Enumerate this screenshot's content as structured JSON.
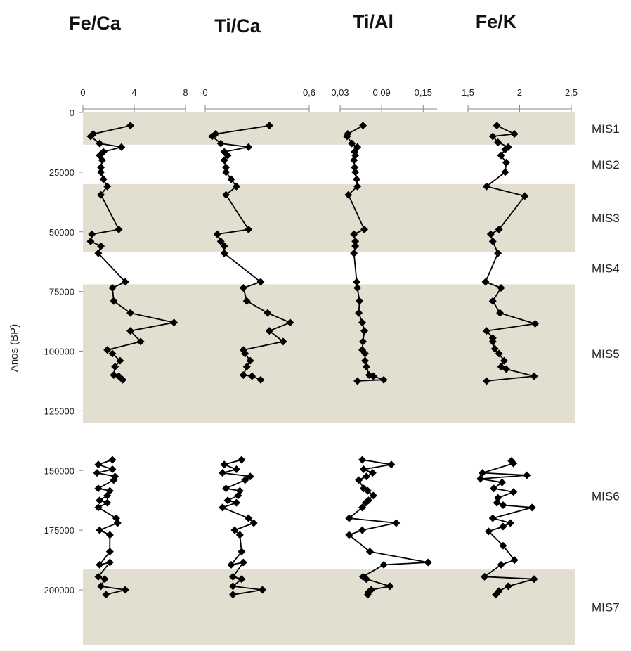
{
  "chart_data": {
    "type": "line",
    "ylabel": "Anos (BP)",
    "y_axis": {
      "ylim": [
        0,
        225000
      ],
      "ticks": [
        0,
        25000,
        50000,
        75000,
        100000,
        125000,
        150000,
        175000,
        200000
      ],
      "tick_labels": [
        "0",
        "25000",
        "50000",
        "75000",
        "100000",
        "125000",
        "150000",
        "175000",
        "200000"
      ],
      "reversed": true
    },
    "shading_color": "#e2dfd0",
    "marine_isotope_stages": [
      {
        "label": "MIS1",
        "from": 0,
        "to": 13500,
        "shaded": true
      },
      {
        "label": "MIS2",
        "from": 13500,
        "to": 30000,
        "shaded": false
      },
      {
        "label": "MIS3",
        "from": 30000,
        "to": 58500,
        "shaded": true
      },
      {
        "label": "MIS4",
        "from": 58500,
        "to": 72000,
        "shaded": false
      },
      {
        "label": "MIS5",
        "from": 72000,
        "to": 130000,
        "shaded": true
      },
      {
        "label": "MIS6",
        "from": 130000,
        "to": 191500,
        "shaded": false
      },
      {
        "label": "MIS7",
        "from": 191500,
        "to": 223000,
        "shaded": true
      }
    ],
    "panels": [
      {
        "title": "Fe/Ca",
        "xlim": [
          0,
          8
        ],
        "x_ticks": [
          0,
          4,
          8
        ],
        "x_tick_labels": [
          "0",
          "4",
          "8"
        ],
        "segments": [
          [
            [
              3.7,
              5500
            ],
            [
              0.8,
              9000
            ],
            [
              0.6,
              10000
            ],
            [
              1.3,
              13000
            ],
            [
              3.0,
              14500
            ],
            [
              1.6,
              16500
            ],
            [
              1.3,
              18000
            ],
            [
              1.5,
              20000
            ],
            [
              1.4,
              23000
            ],
            [
              1.4,
              25000
            ],
            [
              1.6,
              28000
            ],
            [
              1.9,
              31000
            ],
            [
              1.4,
              34500
            ],
            [
              2.8,
              49000
            ],
            [
              0.7,
              51000
            ],
            [
              0.6,
              54000
            ],
            [
              1.4,
              56000
            ],
            [
              1.2,
              59000
            ],
            [
              3.3,
              71000
            ],
            [
              2.3,
              73500
            ],
            [
              2.4,
              79000
            ],
            [
              3.7,
              84000
            ],
            [
              7.1,
              88000
            ],
            [
              3.7,
              91500
            ],
            [
              4.5,
              96000
            ],
            [
              1.9,
              99500
            ],
            [
              2.3,
              101000
            ],
            [
              2.9,
              104000
            ],
            [
              2.5,
              106500
            ],
            [
              2.4,
              110000
            ],
            [
              2.8,
              110500
            ],
            [
              3.1,
              112000
            ]
          ],
          [
            [
              2.3,
              145500
            ],
            [
              1.2,
              147500
            ],
            [
              2.3,
              149500
            ],
            [
              1.1,
              151000
            ],
            [
              2.5,
              152500
            ],
            [
              2.4,
              154000
            ],
            [
              1.2,
              157500
            ],
            [
              2.1,
              158500
            ],
            [
              1.9,
              160500
            ],
            [
              1.3,
              162500
            ],
            [
              1.9,
              163500
            ],
            [
              1.2,
              165500
            ],
            [
              2.6,
              170000
            ],
            [
              2.7,
              172000
            ],
            [
              1.3,
              175000
            ],
            [
              2.1,
              177000
            ],
            [
              2.1,
              184000
            ],
            [
              1.3,
              189500
            ],
            [
              2.1,
              188500
            ],
            [
              1.2,
              194500
            ],
            [
              1.7,
              195500
            ],
            [
              1.4,
              198500
            ],
            [
              3.3,
              200000
            ],
            [
              1.8,
              202000
            ]
          ]
        ]
      },
      {
        "title": "Ti/Ca",
        "xlim": [
          0,
          0.6
        ],
        "x_ticks": [
          0,
          0.6
        ],
        "x_tick_labels": [
          "0",
          "0,6"
        ],
        "segments": [
          [
            [
              0.37,
              5500
            ],
            [
              0.06,
              9000
            ],
            [
              0.04,
              10000
            ],
            [
              0.09,
              13000
            ],
            [
              0.25,
              14500
            ],
            [
              0.11,
              16500
            ],
            [
              0.13,
              18000
            ],
            [
              0.11,
              20000
            ],
            [
              0.12,
              23000
            ],
            [
              0.12,
              25000
            ],
            [
              0.15,
              28000
            ],
            [
              0.18,
              31000
            ],
            [
              0.12,
              34500
            ],
            [
              0.25,
              49000
            ],
            [
              0.07,
              51000
            ],
            [
              0.09,
              54000
            ],
            [
              0.11,
              56000
            ],
            [
              0.11,
              59000
            ],
            [
              0.32,
              71000
            ],
            [
              0.22,
              73500
            ],
            [
              0.24,
              79000
            ],
            [
              0.36,
              84000
            ],
            [
              0.49,
              88000
            ],
            [
              0.37,
              91500
            ],
            [
              0.45,
              96000
            ],
            [
              0.22,
              99500
            ],
            [
              0.23,
              101000
            ],
            [
              0.26,
              104000
            ],
            [
              0.24,
              106500
            ],
            [
              0.22,
              110000
            ],
            [
              0.27,
              110500
            ],
            [
              0.32,
              112000
            ]
          ],
          [
            [
              0.21,
              145500
            ],
            [
              0.11,
              147500
            ],
            [
              0.18,
              149500
            ],
            [
              0.1,
              151000
            ],
            [
              0.26,
              152500
            ],
            [
              0.23,
              154000
            ],
            [
              0.12,
              157500
            ],
            [
              0.2,
              158500
            ],
            [
              0.19,
              160500
            ],
            [
              0.13,
              162500
            ],
            [
              0.18,
              163500
            ],
            [
              0.1,
              165500
            ],
            [
              0.25,
              170000
            ],
            [
              0.28,
              172000
            ],
            [
              0.17,
              175000
            ],
            [
              0.2,
              177000
            ],
            [
              0.21,
              184000
            ],
            [
              0.15,
              189500
            ],
            [
              0.22,
              188500
            ],
            [
              0.16,
              194500
            ],
            [
              0.21,
              195500
            ],
            [
              0.16,
              198500
            ],
            [
              0.33,
              200000
            ],
            [
              0.16,
              202000
            ]
          ]
        ]
      },
      {
        "title": "Ti/Al",
        "xlim": [
          0.03,
          0.17
        ],
        "x_ticks": [
          0.03,
          0.09,
          0.15
        ],
        "x_tick_labels": [
          "0,03",
          "0,09",
          "0,15"
        ],
        "segments": [
          [
            [
              0.063,
              5500
            ],
            [
              0.041,
              9000
            ],
            [
              0.04,
              10000
            ],
            [
              0.047,
              13000
            ],
            [
              0.055,
              14500
            ],
            [
              0.051,
              16500
            ],
            [
              0.052,
              18000
            ],
            [
              0.05,
              20000
            ],
            [
              0.051,
              23000
            ],
            [
              0.052,
              25000
            ],
            [
              0.054,
              28000
            ],
            [
              0.055,
              31000
            ],
            [
              0.042,
              34500
            ],
            [
              0.065,
              49000
            ],
            [
              0.05,
              51000
            ],
            [
              0.052,
              54000
            ],
            [
              0.052,
              56000
            ],
            [
              0.05,
              59000
            ],
            [
              0.054,
              71000
            ],
            [
              0.055,
              73500
            ],
            [
              0.058,
              79000
            ],
            [
              0.057,
              84000
            ],
            [
              0.062,
              88000
            ],
            [
              0.065,
              91500
            ],
            [
              0.063,
              96000
            ],
            [
              0.062,
              99500
            ],
            [
              0.066,
              101000
            ],
            [
              0.066,
              104000
            ],
            [
              0.068,
              106500
            ],
            [
              0.072,
              110000
            ],
            [
              0.078,
              110500
            ],
            [
              0.093,
              112000
            ],
            [
              0.055,
              112500
            ]
          ],
          [
            [
              0.062,
              145500
            ],
            [
              0.104,
              147500
            ],
            [
              0.064,
              149500
            ],
            [
              0.077,
              151000
            ],
            [
              0.068,
              152500
            ],
            [
              0.057,
              154000
            ],
            [
              0.064,
              157500
            ],
            [
              0.07,
              158500
            ],
            [
              0.078,
              160500
            ],
            [
              0.071,
              162500
            ],
            [
              0.067,
              163500
            ],
            [
              0.062,
              165500
            ],
            [
              0.043,
              170000
            ],
            [
              0.111,
              172000
            ],
            [
              0.062,
              175000
            ],
            [
              0.043,
              177000
            ],
            [
              0.073,
              184000
            ],
            [
              0.157,
              188500
            ],
            [
              0.093,
              189500
            ],
            [
              0.063,
              194500
            ],
            [
              0.068,
              195500
            ],
            [
              0.102,
              198500
            ],
            [
              0.075,
              200000
            ],
            [
              0.071,
              201000
            ],
            [
              0.07,
              202000
            ]
          ]
        ]
      },
      {
        "title": "Fe/K",
        "xlim": [
          1.5,
          2.5
        ],
        "x_ticks": [
          1.5,
          2,
          2.5
        ],
        "x_tick_labels": [
          "1,5",
          "2",
          "2,5"
        ],
        "segments": [
          [
            [
              1.78,
              5500
            ],
            [
              1.95,
              9000
            ],
            [
              1.74,
              10000
            ],
            [
              1.79,
              12500
            ],
            [
              1.89,
              14500
            ],
            [
              1.86,
              15500
            ],
            [
              1.82,
              18000
            ],
            [
              1.87,
              21000
            ],
            [
              1.86,
              25000
            ],
            [
              1.68,
              31000
            ],
            [
              2.05,
              35000
            ],
            [
              1.8,
              49000
            ],
            [
              1.72,
              51000
            ],
            [
              1.74,
              54000
            ],
            [
              1.79,
              59000
            ],
            [
              1.67,
              71000
            ],
            [
              1.82,
              73500
            ],
            [
              1.74,
              79000
            ],
            [
              1.81,
              84000
            ],
            [
              2.15,
              88500
            ],
            [
              1.68,
              91500
            ],
            [
              1.74,
              94500
            ],
            [
              1.74,
              96000
            ],
            [
              1.76,
              99000
            ],
            [
              1.8,
              101000
            ],
            [
              1.85,
              104000
            ],
            [
              1.82,
              106500
            ],
            [
              1.87,
              107500
            ],
            [
              2.14,
              110500
            ],
            [
              1.68,
              112500
            ]
          ],
          [
            [
              1.92,
              146000
            ],
            [
              1.94,
              147000
            ],
            [
              1.64,
              151000
            ],
            [
              2.07,
              152000
            ],
            [
              1.62,
              153500
            ],
            [
              1.83,
              155000
            ],
            [
              1.75,
              157500
            ],
            [
              1.94,
              159000
            ],
            [
              1.79,
              161500
            ],
            [
              1.78,
              163500
            ],
            [
              1.84,
              164500
            ],
            [
              2.12,
              165500
            ],
            [
              1.74,
              170000
            ],
            [
              1.91,
              172000
            ],
            [
              1.84,
              173500
            ],
            [
              1.7,
              175500
            ],
            [
              1.84,
              181500
            ],
            [
              1.95,
              187500
            ],
            [
              1.82,
              189500
            ],
            [
              1.66,
              194500
            ],
            [
              2.14,
              195500
            ],
            [
              1.89,
              198500
            ],
            [
              1.8,
              200500
            ],
            [
              1.77,
              202000
            ]
          ]
        ]
      }
    ]
  }
}
